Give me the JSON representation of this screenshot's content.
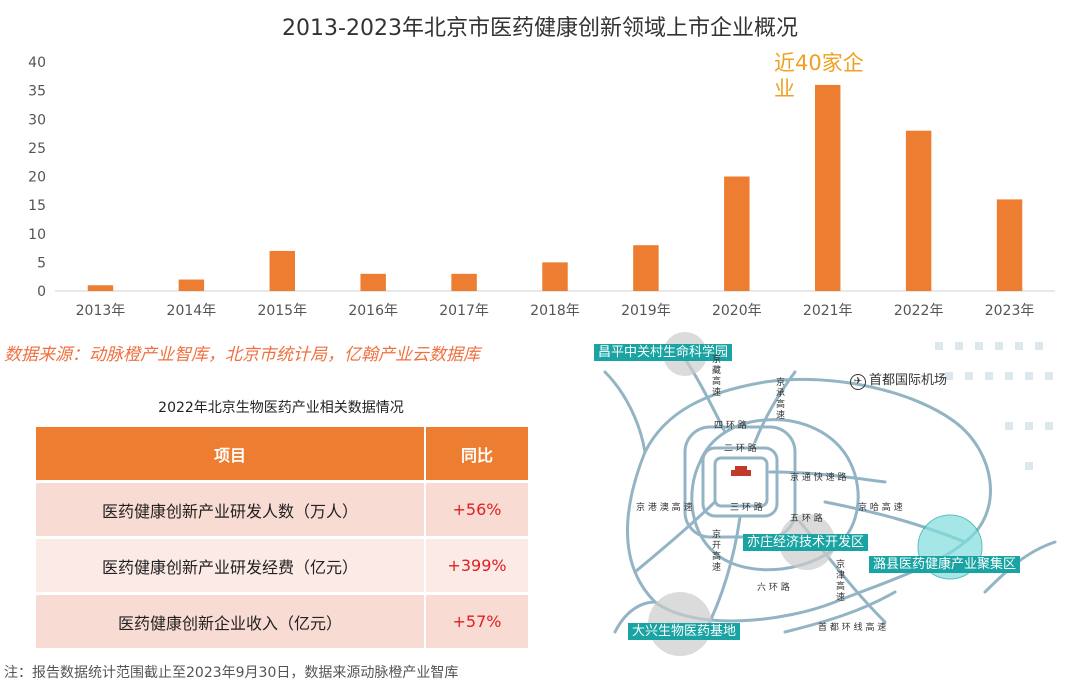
{
  "chart_data": {
    "type": "bar",
    "title": "2013-2023年北京市医药健康创新领域上市企业概况",
    "categories": [
      "2013年",
      "2014年",
      "2015年",
      "2016年",
      "2017年",
      "2018年",
      "2019年",
      "2020年",
      "2021年",
      "2022年",
      "2023年"
    ],
    "values": [
      1,
      2,
      7,
      3,
      3,
      5,
      8,
      20,
      36,
      28,
      16
    ],
    "ylim": [
      0,
      40
    ],
    "yticks": [
      "0",
      "5",
      "10",
      "15",
      "20",
      "25",
      "30",
      "35",
      "40"
    ],
    "bar_color": "#ed7d31",
    "grid": false,
    "annotation": "近40家企业"
  },
  "source_note": "数据来源：动脉橙产业智库，北京市统计局，亿翰产业云数据库",
  "table": {
    "title": "2022年北京生物医药产业相关数据情况",
    "headers": [
      "项目",
      "同比"
    ],
    "rows": [
      {
        "item": "医药健康创新产业研发人数（万人）",
        "yoy": "+56%"
      },
      {
        "item": "医药健康创新产业研发经费（亿元）",
        "yoy": "+399%"
      },
      {
        "item": "医药健康创新企业收入（亿元）",
        "yoy": "+57%"
      }
    ],
    "header_color": "#ed7d31",
    "value_color": "#e02020"
  },
  "map": {
    "labels": {
      "changping": "昌平中关村生命科学园",
      "airport": "首都国际机场",
      "yizhuang": "亦庄经济技术开发区",
      "tongzhou": "潞县医药健康产业聚集区",
      "daxing": "大兴生物医药基地"
    },
    "roads": {
      "ring4": "四 环 路",
      "ring2": "二 环 路",
      "ring3": "三 环 路",
      "ring5": "五 环 路",
      "ring6": "六 环 路",
      "jingtong": "京 通 快 速 路",
      "jingha": "京 哈 高 速",
      "jinggang": "京 港 澳 高 速",
      "jingzang": "京藏高速",
      "jingcheng": "京承高速",
      "jingkai": "京开高速",
      "jingjin": "京津高速",
      "shoudu": "首 都 环 线 高 速"
    },
    "teal": "#19a3a3"
  },
  "footer_note": "注：报告数据统计范围截止至2023年9月30日，数据来源动脉橙产业智库"
}
